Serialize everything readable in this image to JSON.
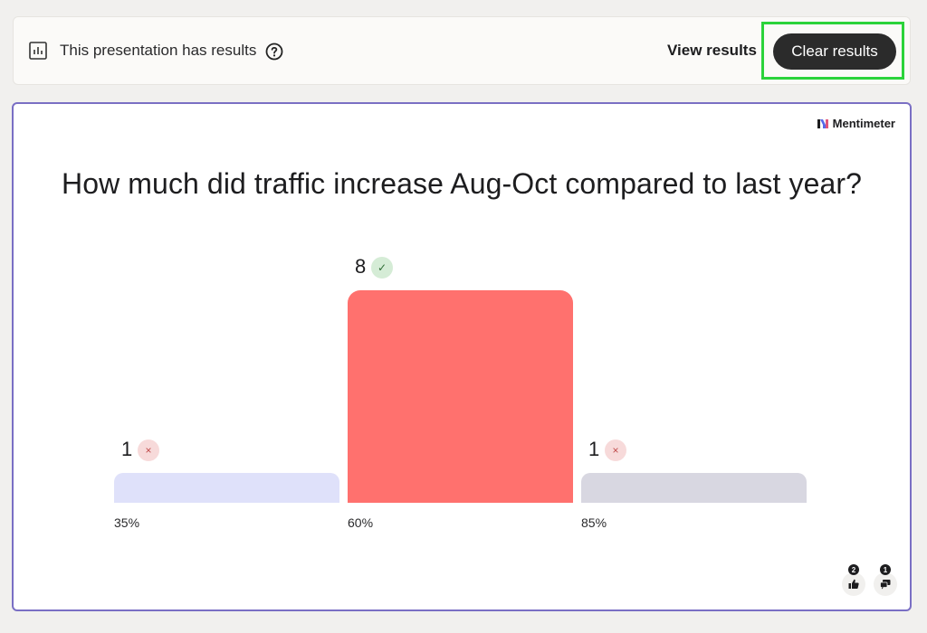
{
  "topbar": {
    "status_text": "This presentation has results",
    "view_results_label": "View results",
    "clear_results_label": "Clear results"
  },
  "slide": {
    "brand": "Mentimeter",
    "question": "How much did traffic increase Aug-Oct compared to last year?"
  },
  "chart_data": {
    "type": "bar",
    "categories": [
      "35%",
      "60%",
      "85%"
    ],
    "values": [
      1,
      8,
      1
    ],
    "correct": [
      false,
      true,
      false
    ],
    "colors": [
      "#dfe1fa",
      "#ff716e",
      "#d8d7e1"
    ]
  },
  "reactions": [
    {
      "icon": "thumbs-up-icon",
      "count": "2"
    },
    {
      "icon": "comment-icon",
      "count": "1"
    }
  ],
  "colors": {
    "highlight": "#2bd33b",
    "slide_border": "#7a6fc4",
    "button_bg": "#2b2b2b"
  }
}
